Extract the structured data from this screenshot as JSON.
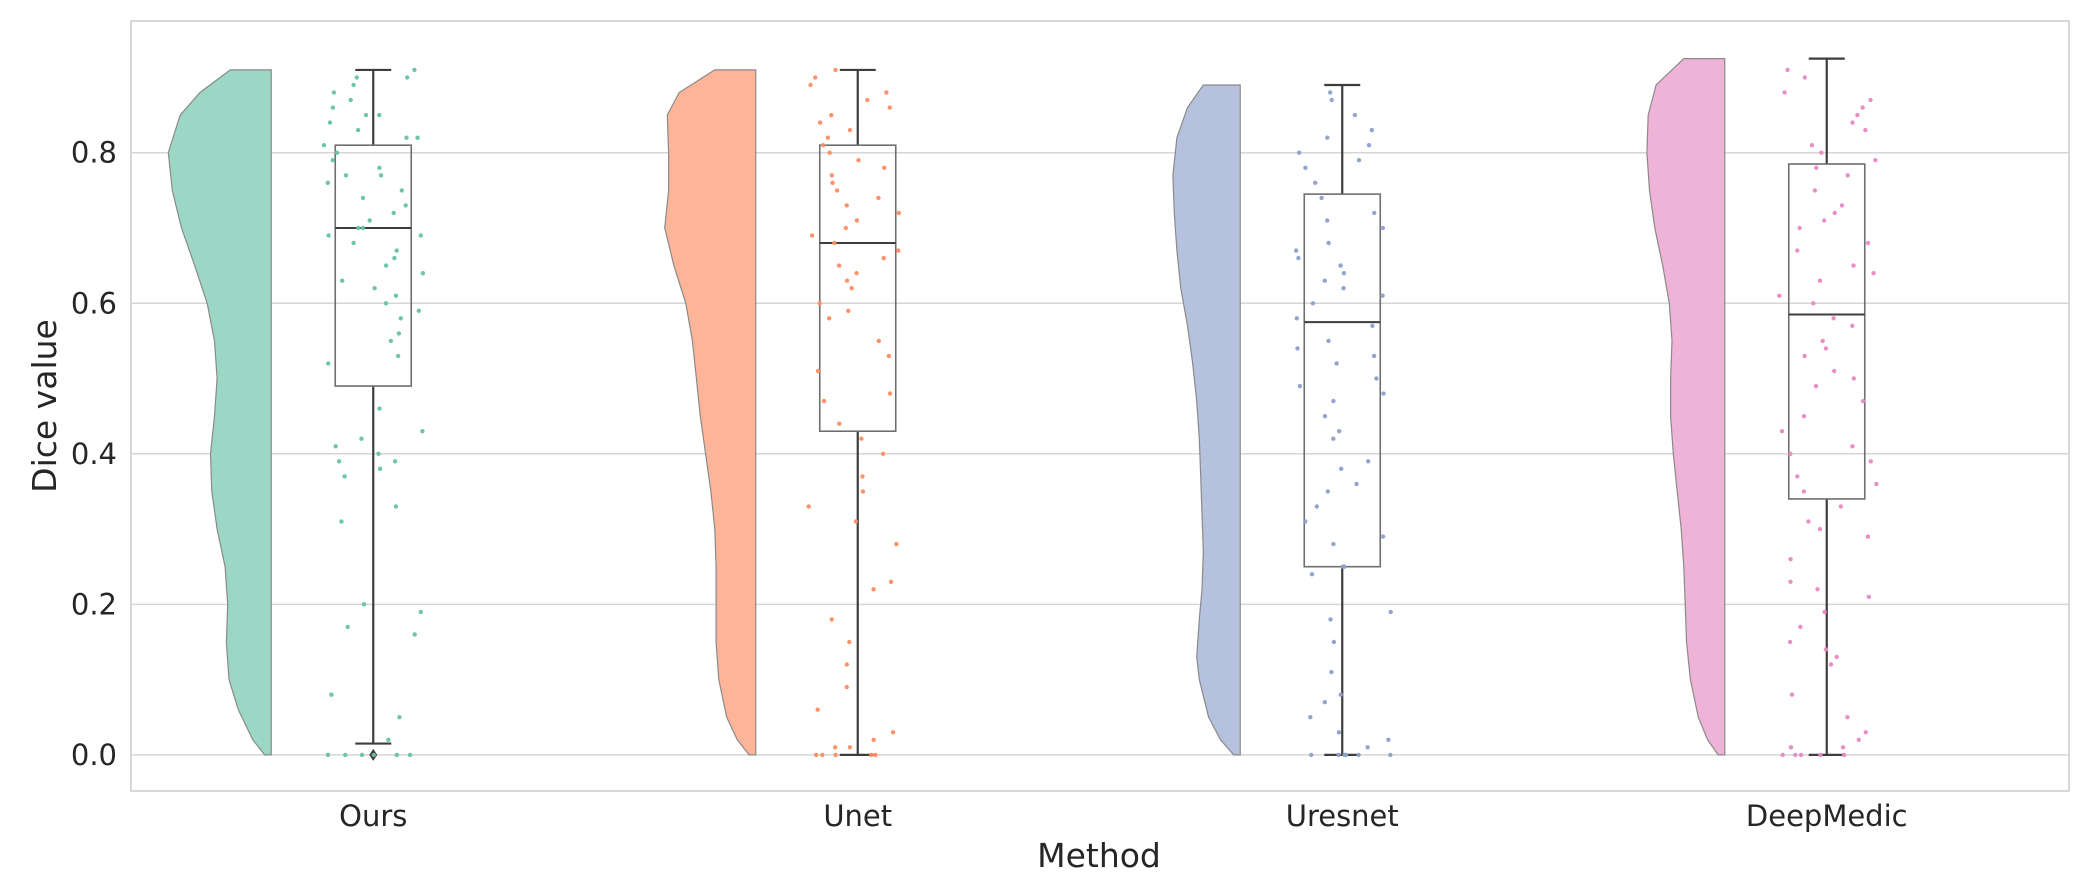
{
  "chart_data": {
    "type": "raincloud",
    "xlabel": "Method",
    "ylabel": "Dice value",
    "ylim": [
      -0.048,
      0.975
    ],
    "yticks": [
      0.0,
      0.2,
      0.4,
      0.6,
      0.8
    ],
    "ytick_labels": [
      "0.0",
      "0.2",
      "0.4",
      "0.6",
      "0.8"
    ],
    "grid": "horizontal",
    "categories": [
      "Ours",
      "Unet",
      "Uresnet",
      "DeepMedic"
    ],
    "series": [
      {
        "name": "Ours",
        "color": "#66c2a5",
        "box": {
          "whisker_low": 0.015,
          "q1": 0.49,
          "median": 0.7,
          "q3": 0.81,
          "whisker_high": 0.91
        },
        "outliers": [
          0.0
        ],
        "density": [
          [
            0.0,
            0.1
          ],
          [
            0.02,
            0.28
          ],
          [
            0.06,
            0.5
          ],
          [
            0.1,
            0.64
          ],
          [
            0.15,
            0.68
          ],
          [
            0.2,
            0.66
          ],
          [
            0.25,
            0.7
          ],
          [
            0.3,
            0.82
          ],
          [
            0.35,
            0.9
          ],
          [
            0.4,
            0.92
          ],
          [
            0.45,
            0.86
          ],
          [
            0.5,
            0.82
          ],
          [
            0.55,
            0.86
          ],
          [
            0.6,
            0.97
          ],
          [
            0.65,
            1.16
          ],
          [
            0.7,
            1.36
          ],
          [
            0.75,
            1.5
          ],
          [
            0.8,
            1.56
          ],
          [
            0.85,
            1.38
          ],
          [
            0.88,
            1.08
          ],
          [
            0.91,
            0.62
          ]
        ],
        "points": [
          0.0,
          0.0,
          0.0,
          0.0,
          0.0,
          0.0,
          0.02,
          0.05,
          0.08,
          0.16,
          0.17,
          0.19,
          0.2,
          0.31,
          0.33,
          0.37,
          0.38,
          0.39,
          0.39,
          0.4,
          0.41,
          0.42,
          0.43,
          0.46,
          0.52,
          0.53,
          0.55,
          0.56,
          0.58,
          0.59,
          0.6,
          0.61,
          0.62,
          0.63,
          0.64,
          0.65,
          0.66,
          0.67,
          0.68,
          0.69,
          0.69,
          0.7,
          0.7,
          0.71,
          0.72,
          0.73,
          0.74,
          0.75,
          0.76,
          0.77,
          0.77,
          0.78,
          0.79,
          0.8,
          0.81,
          0.82,
          0.82,
          0.83,
          0.84,
          0.85,
          0.85,
          0.86,
          0.87,
          0.88,
          0.89,
          0.9,
          0.9,
          0.91
        ]
      },
      {
        "name": "Unet",
        "color": "#fc8d62",
        "box": {
          "whisker_low": 0.0,
          "q1": 0.43,
          "median": 0.68,
          "q3": 0.81,
          "whisker_high": 0.91
        },
        "outliers": [],
        "density": [
          [
            0.0,
            0.1
          ],
          [
            0.02,
            0.28
          ],
          [
            0.05,
            0.44
          ],
          [
            0.1,
            0.56
          ],
          [
            0.15,
            0.6
          ],
          [
            0.2,
            0.6
          ],
          [
            0.25,
            0.6
          ],
          [
            0.3,
            0.62
          ],
          [
            0.35,
            0.68
          ],
          [
            0.4,
            0.76
          ],
          [
            0.45,
            0.84
          ],
          [
            0.5,
            0.9
          ],
          [
            0.55,
            0.96
          ],
          [
            0.6,
            1.06
          ],
          [
            0.65,
            1.24
          ],
          [
            0.7,
            1.38
          ],
          [
            0.75,
            1.32
          ],
          [
            0.8,
            1.32
          ],
          [
            0.85,
            1.34
          ],
          [
            0.88,
            1.16
          ],
          [
            0.91,
            0.62
          ]
        ],
        "points": [
          0.0,
          0.0,
          0.0,
          0.0,
          0.0,
          0.01,
          0.01,
          0.02,
          0.03,
          0.06,
          0.09,
          0.12,
          0.15,
          0.18,
          0.22,
          0.23,
          0.28,
          0.31,
          0.33,
          0.35,
          0.37,
          0.4,
          0.42,
          0.44,
          0.47,
          0.48,
          0.51,
          0.53,
          0.55,
          0.58,
          0.59,
          0.6,
          0.62,
          0.63,
          0.64,
          0.65,
          0.66,
          0.67,
          0.68,
          0.69,
          0.7,
          0.71,
          0.72,
          0.73,
          0.74,
          0.75,
          0.76,
          0.77,
          0.78,
          0.79,
          0.8,
          0.81,
          0.82,
          0.83,
          0.84,
          0.85,
          0.86,
          0.87,
          0.88,
          0.89,
          0.9,
          0.91
        ]
      },
      {
        "name": "Uresnet",
        "color": "#8da0cb",
        "box": {
          "whisker_low": 0.0,
          "q1": 0.25,
          "median": 0.575,
          "q3": 0.745,
          "whisker_high": 0.89
        },
        "outliers": [],
        "density": [
          [
            0.0,
            0.1
          ],
          [
            0.02,
            0.3
          ],
          [
            0.05,
            0.48
          ],
          [
            0.1,
            0.62
          ],
          [
            0.13,
            0.66
          ],
          [
            0.18,
            0.62
          ],
          [
            0.22,
            0.58
          ],
          [
            0.27,
            0.56
          ],
          [
            0.32,
            0.58
          ],
          [
            0.37,
            0.6
          ],
          [
            0.42,
            0.62
          ],
          [
            0.47,
            0.66
          ],
          [
            0.52,
            0.72
          ],
          [
            0.57,
            0.8
          ],
          [
            0.62,
            0.9
          ],
          [
            0.67,
            0.96
          ],
          [
            0.72,
            1.0
          ],
          [
            0.77,
            1.02
          ],
          [
            0.82,
            0.96
          ],
          [
            0.86,
            0.8
          ],
          [
            0.89,
            0.56
          ]
        ],
        "points": [
          0.0,
          0.0,
          0.0,
          0.0,
          0.0,
          0.0,
          0.01,
          0.02,
          0.03,
          0.05,
          0.07,
          0.08,
          0.11,
          0.15,
          0.18,
          0.19,
          0.24,
          0.25,
          0.25,
          0.28,
          0.29,
          0.31,
          0.33,
          0.35,
          0.36,
          0.38,
          0.39,
          0.42,
          0.43,
          0.45,
          0.47,
          0.48,
          0.49,
          0.5,
          0.52,
          0.53,
          0.54,
          0.55,
          0.57,
          0.58,
          0.6,
          0.61,
          0.62,
          0.63,
          0.64,
          0.65,
          0.66,
          0.67,
          0.68,
          0.7,
          0.71,
          0.72,
          0.74,
          0.76,
          0.78,
          0.79,
          0.8,
          0.81,
          0.82,
          0.83,
          0.85,
          0.87,
          0.88
        ]
      },
      {
        "name": "DeepMedic",
        "color": "#e78ac3",
        "box": {
          "whisker_low": 0.0,
          "q1": 0.34,
          "median": 0.585,
          "q3": 0.785,
          "whisker_high": 0.925
        },
        "outliers": [],
        "density": [
          [
            0.0,
            0.1
          ],
          [
            0.02,
            0.26
          ],
          [
            0.05,
            0.4
          ],
          [
            0.1,
            0.52
          ],
          [
            0.15,
            0.58
          ],
          [
            0.2,
            0.6
          ],
          [
            0.25,
            0.62
          ],
          [
            0.3,
            0.66
          ],
          [
            0.35,
            0.72
          ],
          [
            0.4,
            0.78
          ],
          [
            0.45,
            0.82
          ],
          [
            0.5,
            0.82
          ],
          [
            0.55,
            0.8
          ],
          [
            0.6,
            0.84
          ],
          [
            0.65,
            0.94
          ],
          [
            0.7,
            1.06
          ],
          [
            0.75,
            1.14
          ],
          [
            0.8,
            1.18
          ],
          [
            0.85,
            1.16
          ],
          [
            0.89,
            1.04
          ],
          [
            0.925,
            0.62
          ]
        ],
        "points": [
          0.0,
          0.0,
          0.0,
          0.0,
          0.0,
          0.01,
          0.01,
          0.02,
          0.03,
          0.05,
          0.08,
          0.12,
          0.13,
          0.14,
          0.15,
          0.17,
          0.19,
          0.21,
          0.22,
          0.23,
          0.26,
          0.29,
          0.3,
          0.31,
          0.33,
          0.35,
          0.36,
          0.37,
          0.39,
          0.4,
          0.41,
          0.43,
          0.45,
          0.47,
          0.49,
          0.5,
          0.51,
          0.53,
          0.54,
          0.55,
          0.57,
          0.58,
          0.6,
          0.61,
          0.63,
          0.64,
          0.65,
          0.67,
          0.68,
          0.7,
          0.71,
          0.72,
          0.73,
          0.75,
          0.77,
          0.78,
          0.79,
          0.8,
          0.81,
          0.83,
          0.84,
          0.85,
          0.86,
          0.87,
          0.88,
          0.9,
          0.91
        ]
      }
    ]
  }
}
